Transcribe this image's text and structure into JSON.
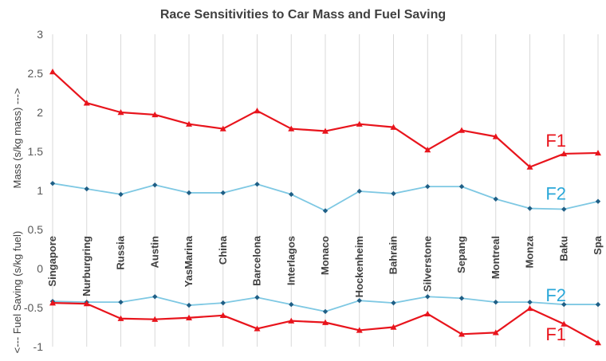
{
  "chart_data": {
    "type": "line",
    "title": "Race Sensitivities to Car Mass and Fuel Saving",
    "ylabel_upper": "Mass (s/kg mass) --->",
    "ylabel_lower": "<--- Fuel Saving (s/kg fuel)",
    "ylim": [
      -1,
      3
    ],
    "yticks": [
      "3",
      "2.5",
      "2",
      "1.5",
      "1",
      "0.5",
      "0",
      "-0.5",
      "-1"
    ],
    "ytick_values": [
      3,
      2.5,
      2,
      1.5,
      1,
      0.5,
      0,
      -0.5,
      -1
    ],
    "grid": "vertical",
    "categories": [
      "Singapore",
      "Nurburgring",
      "Russia",
      "Austin",
      "YasMarina",
      "China",
      "Barcelona",
      "Interlagos",
      "Monaco",
      "Hockenheim",
      "Bahrain",
      "Silverstone",
      "Sepang",
      "Montreal",
      "Monza",
      "Baku",
      "Spa"
    ],
    "series": [
      {
        "name": "F1",
        "group": "mass",
        "color": "#e8141c",
        "marker": "triangle",
        "values": [
          2.52,
          2.12,
          2.0,
          1.97,
          1.85,
          1.79,
          2.02,
          1.79,
          1.76,
          1.85,
          1.81,
          1.52,
          1.77,
          1.69,
          1.3,
          1.47,
          1.48
        ]
      },
      {
        "name": "F2",
        "group": "mass",
        "color": "#7ec8e3",
        "marker": "diamond",
        "values": [
          1.09,
          1.02,
          0.95,
          1.07,
          0.97,
          0.97,
          1.08,
          0.95,
          0.74,
          0.99,
          0.96,
          1.05,
          1.05,
          0.89,
          0.77,
          0.76,
          0.86
        ]
      },
      {
        "name": "F2",
        "group": "fuel",
        "color": "#7ec8e3",
        "marker": "diamond",
        "values": [
          -0.42,
          -0.43,
          -0.43,
          -0.36,
          -0.47,
          -0.44,
          -0.37,
          -0.46,
          -0.55,
          -0.41,
          -0.44,
          -0.36,
          -0.38,
          -0.43,
          -0.43,
          -0.46,
          -0.46
        ]
      },
      {
        "name": "F1",
        "group": "fuel",
        "color": "#e8141c",
        "marker": "triangle",
        "values": [
          -0.44,
          -0.45,
          -0.64,
          -0.65,
          -0.63,
          -0.6,
          -0.77,
          -0.67,
          -0.69,
          -0.79,
          -0.75,
          -0.58,
          -0.84,
          -0.82,
          -0.51,
          -0.71,
          -0.95
        ]
      }
    ],
    "series_labels": [
      {
        "text": "F1",
        "color": "#e8141c",
        "anchor_series": 0
      },
      {
        "text": "F2",
        "color": "#2aa7d8",
        "anchor_series": 1
      },
      {
        "text": "F2",
        "color": "#2aa7d8",
        "anchor_series": 2
      },
      {
        "text": "F1",
        "color": "#e8141c",
        "anchor_series": 3
      }
    ]
  }
}
